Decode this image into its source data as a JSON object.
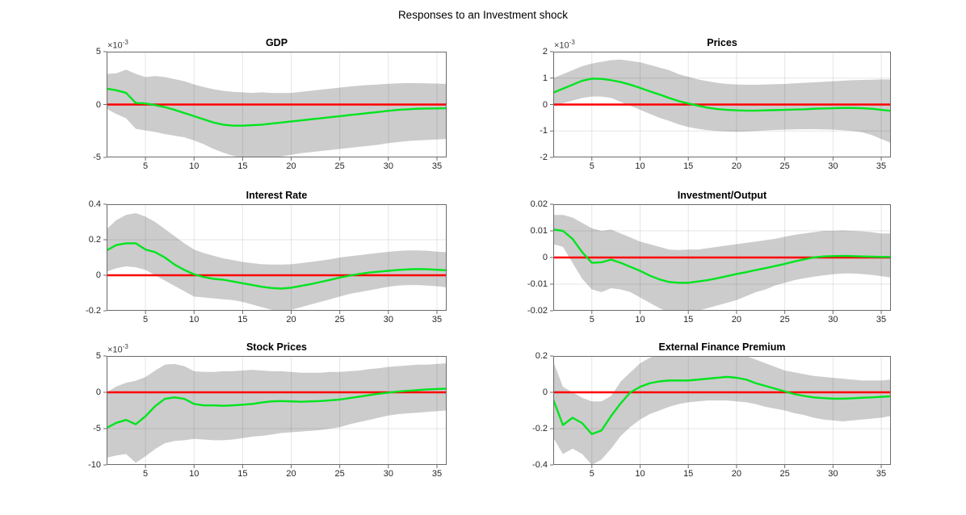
{
  "figure": {
    "title": "Responses to an Investment shock",
    "background": "#ffffff"
  },
  "colors": {
    "band": "#cccccc",
    "median_line": "#00e41e",
    "zero_line": "#ff0000",
    "grid": "rgba(0,0,0,0.10)",
    "axis": "#6b6b6b",
    "tick_text": "#262626",
    "title_text": "#000000"
  },
  "chart_shared": {
    "exponent_prefix": "×10",
    "x_range": [
      1,
      36
    ],
    "x_ticks": [
      5,
      10,
      15,
      20,
      25,
      30,
      35
    ],
    "grid": "both",
    "legend": "none",
    "x": [
      1,
      2,
      3,
      4,
      5,
      6,
      7,
      8,
      9,
      10,
      11,
      12,
      13,
      14,
      15,
      16,
      17,
      18,
      19,
      20,
      21,
      22,
      23,
      24,
      25,
      26,
      27,
      28,
      29,
      30,
      31,
      32,
      33,
      34,
      35,
      36
    ]
  },
  "chart_data": [
    {
      "type": "line",
      "title": "GDP",
      "xlabel": "",
      "ylabel": "",
      "exponent": "-3",
      "value_scale": 0.001,
      "ylim": [
        -5,
        5
      ],
      "yticks": [
        -5,
        0,
        5
      ],
      "ytick_labels": [
        "-5",
        "0",
        "5"
      ],
      "zero_line": true,
      "series": [
        {
          "name": "median",
          "values": [
            1.5,
            1.35,
            1.1,
            0.15,
            0.1,
            -0.05,
            -0.25,
            -0.5,
            -0.8,
            -1.1,
            -1.4,
            -1.7,
            -1.9,
            -2.0,
            -2.0,
            -1.95,
            -1.9,
            -1.8,
            -1.7,
            -1.6,
            -1.5,
            -1.4,
            -1.3,
            -1.2,
            -1.1,
            -1.0,
            -0.9,
            -0.8,
            -0.7,
            -0.6,
            -0.5,
            -0.45,
            -0.4,
            -0.38,
            -0.37,
            -0.35
          ]
        },
        {
          "name": "band_upper",
          "values": [
            2.9,
            2.95,
            3.3,
            2.9,
            2.6,
            2.7,
            2.6,
            2.4,
            2.2,
            1.9,
            1.65,
            1.45,
            1.3,
            1.2,
            1.15,
            1.1,
            1.15,
            1.1,
            1.1,
            1.1,
            1.2,
            1.3,
            1.4,
            1.5,
            1.6,
            1.7,
            1.78,
            1.85,
            1.9,
            1.97,
            2.0,
            2.03,
            2.02,
            2.0,
            1.98,
            1.95
          ]
        },
        {
          "name": "band_lower",
          "values": [
            -0.4,
            -0.9,
            -1.3,
            -2.3,
            -2.45,
            -2.6,
            -2.8,
            -2.95,
            -3.1,
            -3.4,
            -3.75,
            -4.2,
            -4.55,
            -4.85,
            -5.05,
            -5.15,
            -5.1,
            -5.0,
            -4.9,
            -4.75,
            -4.6,
            -4.5,
            -4.4,
            -4.3,
            -4.2,
            -4.1,
            -4.0,
            -3.9,
            -3.8,
            -3.65,
            -3.55,
            -3.45,
            -3.4,
            -3.35,
            -3.3,
            -3.25
          ]
        }
      ]
    },
    {
      "type": "line",
      "title": "Prices",
      "xlabel": "",
      "ylabel": "",
      "exponent": "-3",
      "value_scale": 0.001,
      "ylim": [
        -2,
        2
      ],
      "yticks": [
        -2,
        -1,
        0,
        1,
        2
      ],
      "ytick_labels": [
        "-2",
        "-1",
        "0",
        "1",
        "2"
      ],
      "zero_line": true,
      "series": [
        {
          "name": "median",
          "values": [
            0.45,
            0.6,
            0.75,
            0.9,
            0.98,
            0.97,
            0.92,
            0.85,
            0.75,
            0.63,
            0.5,
            0.38,
            0.25,
            0.13,
            0.04,
            -0.04,
            -0.12,
            -0.17,
            -0.2,
            -0.22,
            -0.23,
            -0.23,
            -0.22,
            -0.21,
            -0.2,
            -0.19,
            -0.18,
            -0.16,
            -0.15,
            -0.14,
            -0.13,
            -0.13,
            -0.14,
            -0.16,
            -0.2,
            -0.24
          ]
        },
        {
          "name": "band_upper",
          "values": [
            1.0,
            1.15,
            1.3,
            1.45,
            1.55,
            1.62,
            1.68,
            1.7,
            1.65,
            1.6,
            1.5,
            1.4,
            1.3,
            1.15,
            1.05,
            0.95,
            0.88,
            0.82,
            0.78,
            0.76,
            0.75,
            0.75,
            0.76,
            0.77,
            0.78,
            0.8,
            0.82,
            0.84,
            0.86,
            0.88,
            0.9,
            0.92,
            0.93,
            0.94,
            0.95,
            0.95
          ]
        },
        {
          "name": "band_lower",
          "values": [
            -0.05,
            0.05,
            0.15,
            0.25,
            0.3,
            0.3,
            0.25,
            0.1,
            -0.05,
            -0.2,
            -0.35,
            -0.5,
            -0.62,
            -0.75,
            -0.85,
            -0.92,
            -0.97,
            -1.0,
            -1.02,
            -1.03,
            -1.02,
            -1.0,
            -0.98,
            -0.96,
            -0.95,
            -0.94,
            -0.93,
            -0.93,
            -0.94,
            -0.95,
            -0.97,
            -1.0,
            -1.05,
            -1.15,
            -1.3,
            -1.45
          ]
        }
      ]
    },
    {
      "type": "line",
      "title": "Interest Rate",
      "xlabel": "",
      "ylabel": "",
      "exponent": null,
      "value_scale": 1,
      "ylim": [
        -0.2,
        0.4
      ],
      "yticks": [
        -0.2,
        0,
        0.2,
        0.4
      ],
      "ytick_labels": [
        "-0.2",
        "0",
        "0.2",
        "0.4"
      ],
      "zero_line": true,
      "series": [
        {
          "name": "median",
          "values": [
            0.14,
            0.17,
            0.18,
            0.18,
            0.145,
            0.13,
            0.1,
            0.06,
            0.03,
            0.005,
            -0.01,
            -0.02,
            -0.025,
            -0.035,
            -0.045,
            -0.055,
            -0.065,
            -0.072,
            -0.075,
            -0.07,
            -0.06,
            -0.05,
            -0.038,
            -0.026,
            -0.013,
            -0.002,
            0.007,
            0.015,
            0.02,
            0.025,
            0.03,
            0.033,
            0.035,
            0.034,
            0.031,
            0.028
          ]
        },
        {
          "name": "band_upper",
          "values": [
            0.26,
            0.31,
            0.34,
            0.35,
            0.33,
            0.3,
            0.26,
            0.22,
            0.18,
            0.145,
            0.125,
            0.11,
            0.095,
            0.085,
            0.075,
            0.068,
            0.062,
            0.06,
            0.06,
            0.062,
            0.068,
            0.075,
            0.082,
            0.09,
            0.1,
            0.107,
            0.113,
            0.12,
            0.126,
            0.132,
            0.137,
            0.14,
            0.14,
            0.138,
            0.133,
            0.13
          ]
        },
        {
          "name": "band_lower",
          "values": [
            0.02,
            0.04,
            0.05,
            0.045,
            0.03,
            0.0,
            -0.03,
            -0.06,
            -0.09,
            -0.12,
            -0.125,
            -0.13,
            -0.135,
            -0.14,
            -0.15,
            -0.165,
            -0.18,
            -0.195,
            -0.2,
            -0.195,
            -0.18,
            -0.165,
            -0.15,
            -0.135,
            -0.12,
            -0.105,
            -0.095,
            -0.085,
            -0.075,
            -0.065,
            -0.058,
            -0.055,
            -0.055,
            -0.058,
            -0.062,
            -0.068
          ]
        }
      ]
    },
    {
      "type": "line",
      "title": "Investment/Output",
      "xlabel": "",
      "ylabel": "",
      "exponent": null,
      "value_scale": 1,
      "ylim": [
        -0.02,
        0.02
      ],
      "yticks": [
        -0.02,
        -0.01,
        0,
        0.01,
        0.02
      ],
      "ytick_labels": [
        "-0.02",
        "-0.01",
        "0",
        "0.01",
        "0.02"
      ],
      "zero_line": true,
      "series": [
        {
          "name": "median",
          "values": [
            0.0105,
            0.01,
            0.007,
            0.002,
            -0.002,
            -0.0018,
            -0.0008,
            -0.002,
            -0.0035,
            -0.005,
            -0.0068,
            -0.0082,
            -0.0092,
            -0.0095,
            -0.0095,
            -0.009,
            -0.0085,
            -0.0078,
            -0.007,
            -0.0062,
            -0.0055,
            -0.0047,
            -0.004,
            -0.0032,
            -0.0024,
            -0.0015,
            -0.0007,
            0.0,
            0.0004,
            0.0005,
            0.0006,
            0.0005,
            0.0004,
            0.0003,
            0.0002,
            0.0002
          ]
        },
        {
          "name": "band_upper",
          "values": [
            0.016,
            0.016,
            0.015,
            0.013,
            0.011,
            0.01,
            0.0105,
            0.009,
            0.0075,
            0.006,
            0.005,
            0.004,
            0.003,
            0.0028,
            0.003,
            0.003,
            0.0035,
            0.004,
            0.0045,
            0.005,
            0.0055,
            0.006,
            0.0065,
            0.007,
            0.0078,
            0.0085,
            0.009,
            0.0095,
            0.01,
            0.01,
            0.0102,
            0.01,
            0.0098,
            0.0095,
            0.009,
            0.009
          ]
        },
        {
          "name": "band_lower",
          "values": [
            0.005,
            0.004,
            -0.002,
            -0.008,
            -0.012,
            -0.013,
            -0.0115,
            -0.012,
            -0.013,
            -0.015,
            -0.017,
            -0.019,
            -0.0205,
            -0.021,
            -0.0205,
            -0.02,
            -0.019,
            -0.018,
            -0.017,
            -0.016,
            -0.0145,
            -0.013,
            -0.012,
            -0.0105,
            -0.0095,
            -0.0085,
            -0.0078,
            -0.0072,
            -0.0067,
            -0.0063,
            -0.006,
            -0.006,
            -0.0062,
            -0.0065,
            -0.007,
            -0.0075
          ]
        }
      ]
    },
    {
      "type": "line",
      "title": "Stock Prices",
      "xlabel": "",
      "ylabel": "",
      "exponent": "-3",
      "value_scale": 0.001,
      "ylim": [
        -10,
        5
      ],
      "yticks": [
        -10,
        -5,
        0,
        5
      ],
      "ytick_labels": [
        "-10",
        "-5",
        "0",
        "5"
      ],
      "zero_line": true,
      "series": [
        {
          "name": "median",
          "values": [
            -4.9,
            -4.2,
            -3.8,
            -4.4,
            -3.3,
            -1.9,
            -0.9,
            -0.7,
            -0.9,
            -1.6,
            -1.8,
            -1.8,
            -1.85,
            -1.8,
            -1.7,
            -1.6,
            -1.4,
            -1.25,
            -1.2,
            -1.25,
            -1.3,
            -1.25,
            -1.2,
            -1.1,
            -1.0,
            -0.8,
            -0.6,
            -0.4,
            -0.2,
            -0.05,
            0.1,
            0.2,
            0.3,
            0.4,
            0.45,
            0.5
          ]
        },
        {
          "name": "band_upper",
          "values": [
            0.0,
            0.8,
            1.3,
            1.6,
            2.1,
            3.0,
            3.8,
            3.9,
            3.6,
            2.9,
            2.8,
            2.8,
            2.9,
            2.9,
            3.0,
            3.1,
            3.0,
            2.9,
            2.9,
            2.8,
            2.7,
            2.7,
            2.7,
            2.8,
            2.8,
            2.9,
            3.0,
            3.2,
            3.3,
            3.5,
            3.6,
            3.7,
            3.8,
            3.8,
            3.9,
            4.0
          ]
        },
        {
          "name": "band_lower",
          "values": [
            -9.0,
            -8.7,
            -8.5,
            -9.7,
            -8.8,
            -7.8,
            -7.0,
            -6.7,
            -6.6,
            -6.4,
            -6.5,
            -6.6,
            -6.6,
            -6.5,
            -6.3,
            -6.1,
            -6.0,
            -5.8,
            -5.6,
            -5.5,
            -5.4,
            -5.3,
            -5.2,
            -5.0,
            -4.8,
            -4.4,
            -4.1,
            -3.8,
            -3.5,
            -3.2,
            -3.0,
            -2.9,
            -2.8,
            -2.7,
            -2.6,
            -2.5
          ]
        }
      ]
    },
    {
      "type": "line",
      "title": "External Finance Premium",
      "xlabel": "",
      "ylabel": "",
      "exponent": null,
      "value_scale": 1,
      "ylim": [
        -0.4,
        0.2
      ],
      "yticks": [
        -0.4,
        -0.2,
        0,
        0.2
      ],
      "ytick_labels": [
        "-0.4",
        "-0.2",
        "0",
        "0.2"
      ],
      "zero_line": true,
      "series": [
        {
          "name": "median",
          "values": [
            -0.04,
            -0.18,
            -0.14,
            -0.17,
            -0.23,
            -0.21,
            -0.13,
            -0.06,
            0.0,
            0.03,
            0.05,
            0.06,
            0.065,
            0.065,
            0.065,
            0.07,
            0.075,
            0.08,
            0.085,
            0.08,
            0.07,
            0.05,
            0.035,
            0.02,
            0.005,
            -0.01,
            -0.02,
            -0.028,
            -0.032,
            -0.035,
            -0.035,
            -0.033,
            -0.03,
            -0.028,
            -0.025,
            -0.022
          ]
        },
        {
          "name": "band_upper",
          "values": [
            0.17,
            0.03,
            0.0,
            -0.03,
            -0.05,
            -0.05,
            -0.02,
            0.06,
            0.11,
            0.16,
            0.19,
            0.21,
            0.215,
            0.21,
            0.21,
            0.21,
            0.21,
            0.215,
            0.215,
            0.21,
            0.2,
            0.18,
            0.16,
            0.14,
            0.12,
            0.11,
            0.1,
            0.09,
            0.085,
            0.08,
            0.075,
            0.07,
            0.065,
            0.065,
            0.065,
            0.07
          ]
        },
        {
          "name": "band_lower",
          "values": [
            -0.25,
            -0.34,
            -0.31,
            -0.34,
            -0.4,
            -0.37,
            -0.31,
            -0.24,
            -0.19,
            -0.15,
            -0.12,
            -0.1,
            -0.08,
            -0.065,
            -0.055,
            -0.05,
            -0.045,
            -0.045,
            -0.045,
            -0.05,
            -0.055,
            -0.065,
            -0.08,
            -0.09,
            -0.1,
            -0.115,
            -0.125,
            -0.14,
            -0.15,
            -0.155,
            -0.16,
            -0.155,
            -0.15,
            -0.145,
            -0.14,
            -0.13
          ]
        }
      ]
    }
  ]
}
